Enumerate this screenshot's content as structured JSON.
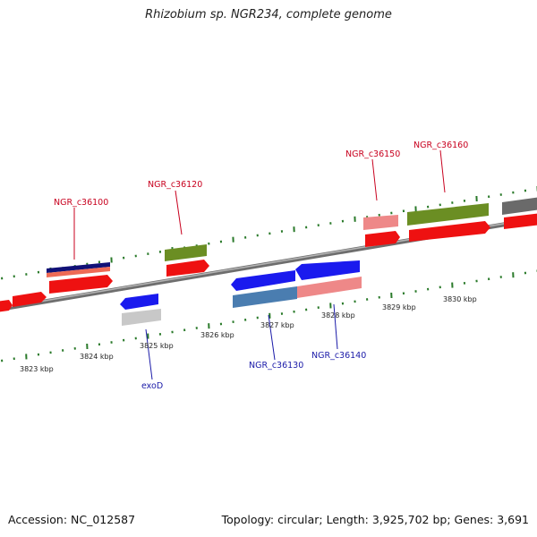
{
  "title": "Rhizobium sp. NGR234, complete genome",
  "accession": "Accession: NC_012587",
  "summary": "Topology: circular; Length: 3,925,702 bp; Genes: 3,691",
  "colors": {
    "label_top": "#c8001e",
    "label_bottom": "#1a1aa8",
    "tick": "#2a7a2a",
    "backbone": "#888888"
  },
  "kbp_labels": [
    "3823 kbp",
    "3824 kbp",
    "3825 kbp",
    "3826 kbp",
    "3827 kbp",
    "3828 kbp",
    "3829 kbp",
    "3830 kbp"
  ],
  "gene_labels_top": [
    "NGR_c36100",
    "NGR_c36120",
    "NGR_c36150",
    "NGR_c36160"
  ],
  "gene_labels_bottom": [
    "exoD",
    "NGR_c36130",
    "NGR_c36140"
  ]
}
